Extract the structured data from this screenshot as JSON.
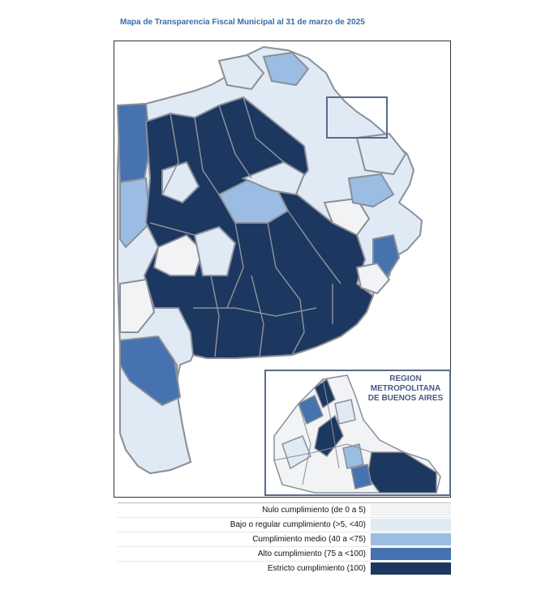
{
  "title": "Mapa de Transparencia Fiscal Municipal al 31 de marzo de 2025",
  "inset": {
    "label_lines": [
      "REGION",
      "METROPOLITANA",
      "DE BUENOS AIRES"
    ]
  },
  "legend": [
    {
      "label": "Nulo cumplimiento (de 0 a 5)",
      "color": "#f2f3f5"
    },
    {
      "label": "Bajo o regular cumplimiento (>5, <40)",
      "color": "#dfeaf5"
    },
    {
      "label": "Cumplimiento medio (40 a <75)",
      "color": "#9bbde3"
    },
    {
      "label": "Alto cumplimiento (75 a <100)",
      "color": "#4672b0"
    },
    {
      "label": "Estricto cumplimiento (100)",
      "color": "#1c3760"
    }
  ]
}
